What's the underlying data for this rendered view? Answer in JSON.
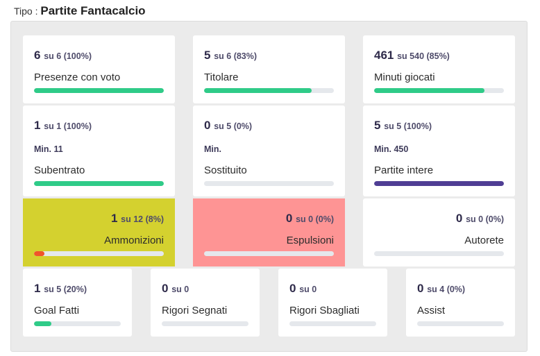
{
  "header": {
    "type_label": "Tipo :",
    "type_value": "Partite Fantacalcio"
  },
  "colors": {
    "green": "#2fcb88",
    "purple": "#4f3e94",
    "orange": "#f0552a",
    "yellow_bg": "#d4d12f",
    "red_bg": "#fe9494"
  },
  "stats": {
    "presenze": {
      "count": "6",
      "sub": "su 6 (100%)",
      "label": "Presenze con voto",
      "progress": 1.0
    },
    "titolare": {
      "count": "5",
      "sub": "su 6 (83%)",
      "label": "Titolare",
      "progress": 0.83
    },
    "minuti": {
      "count": "461",
      "sub": "su 540 (85%)",
      "label": "Minuti giocati",
      "progress": 0.85
    },
    "subentrato": {
      "count": "1",
      "sub": "su 1 (100%)",
      "min": "Min. 11",
      "label": "Subentrato",
      "progress": 1.0
    },
    "sostituito": {
      "count": "0",
      "sub": "su 5 (0%)",
      "min": "Min.",
      "label": "Sostituito",
      "progress": 0
    },
    "intere": {
      "count": "5",
      "sub": "su 5 (100%)",
      "min": "Min. 450",
      "label": "Partite intere",
      "progress": 1.0
    },
    "ammonizioni": {
      "count": "1",
      "sub": "su 12 (8%)",
      "label": "Ammonizioni",
      "progress": 0.08
    },
    "espulsioni": {
      "count": "0",
      "sub": "su 0 (0%)",
      "label": "Espulsioni",
      "progress": 0
    },
    "autorete": {
      "count": "0",
      "sub": "su 0 (0%)",
      "label": "Autorete",
      "progress": 0
    },
    "goal": {
      "count": "1",
      "sub": "su 5 (20%)",
      "label": "Goal Fatti",
      "progress": 0.2
    },
    "rigori_segnati": {
      "count": "0",
      "sub": "su 0",
      "label": "Rigori Segnati",
      "progress": 0
    },
    "rigori_sbagliati": {
      "count": "0",
      "sub": "su 0",
      "label": "Rigori Sbagliati",
      "progress": 0
    },
    "assist": {
      "count": "0",
      "sub": "su 4 (0%)",
      "label": "Assist",
      "progress": 0
    }
  }
}
